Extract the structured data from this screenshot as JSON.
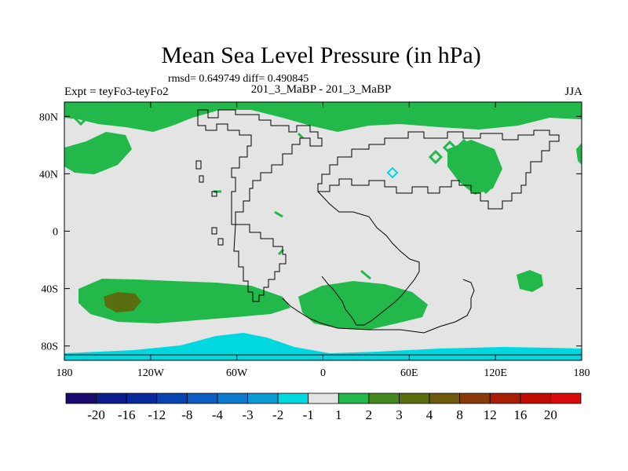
{
  "chart_data": {
    "type": "heatmap",
    "title": "Mean Sea Level Pressure (in hPa)",
    "stats_text": "rmsd= 0.649749 diff= 0.490845",
    "left_label": "Expt = teyFo3-teyFo2",
    "center_label": "201_3_MaBP - 201_3_MaBP",
    "right_label": "JJA",
    "x_ticks": [
      {
        "label": "180",
        "value": -180
      },
      {
        "label": "120W",
        "value": -120
      },
      {
        "label": "60W",
        "value": -60
      },
      {
        "label": "0",
        "value": 0
      },
      {
        "label": "60E",
        "value": 60
      },
      {
        "label": "120E",
        "value": 120
      },
      {
        "label": "180",
        "value": 180
      }
    ],
    "y_ticks": [
      {
        "label": "80N",
        "value": 80
      },
      {
        "label": "40N",
        "value": 40
      },
      {
        "label": "0",
        "value": 0
      },
      {
        "label": "40S",
        "value": -40
      },
      {
        "label": "80S",
        "value": -80
      }
    ],
    "lon_range": [
      -180,
      180
    ],
    "lat_range": [
      -90,
      90
    ],
    "colorbar": {
      "labels": [
        "-20",
        "-16",
        "-12",
        "-8",
        "-4",
        "-3",
        "-2",
        "-1",
        "1",
        "2",
        "3",
        "4",
        "8",
        "12",
        "16",
        "20"
      ],
      "colors": [
        "#1a0a6e",
        "#0b1a8c",
        "#0a2a9c",
        "#0a44b0",
        "#0d5cc2",
        "#0e78cc",
        "#0a9ad4",
        "#00d8e0",
        "#e4e4e4",
        "#22b84a",
        "#44881e",
        "#5a6e10",
        "#6e5a0c",
        "#8a3a0a",
        "#a81e08",
        "#c00c04",
        "#d80a0a"
      ]
    },
    "regions": [
      {
        "name": "north-polar-positive",
        "category": "1 to 2"
      },
      {
        "name": "north-pacific-positive",
        "category": "1 to 2"
      },
      {
        "name": "south-pacific-positive",
        "category": "1 to 2"
      },
      {
        "name": "south-pacific-core",
        "category": "3 to 4"
      },
      {
        "name": "south-atlantic-indian-positive",
        "category": "1 to 2"
      },
      {
        "name": "southeast-indian-positive",
        "category": "1 to 2"
      },
      {
        "name": "asia-positive",
        "category": "1 to 2"
      },
      {
        "name": "antarctic-negative",
        "category": "-2 to -1"
      }
    ]
  },
  "colors": {
    "neutral": "#e4e4e4",
    "positive_1": "#22b84a",
    "positive_3": "#5a6e10",
    "negative_1": "#00d8e0",
    "coast": "#000000"
  }
}
